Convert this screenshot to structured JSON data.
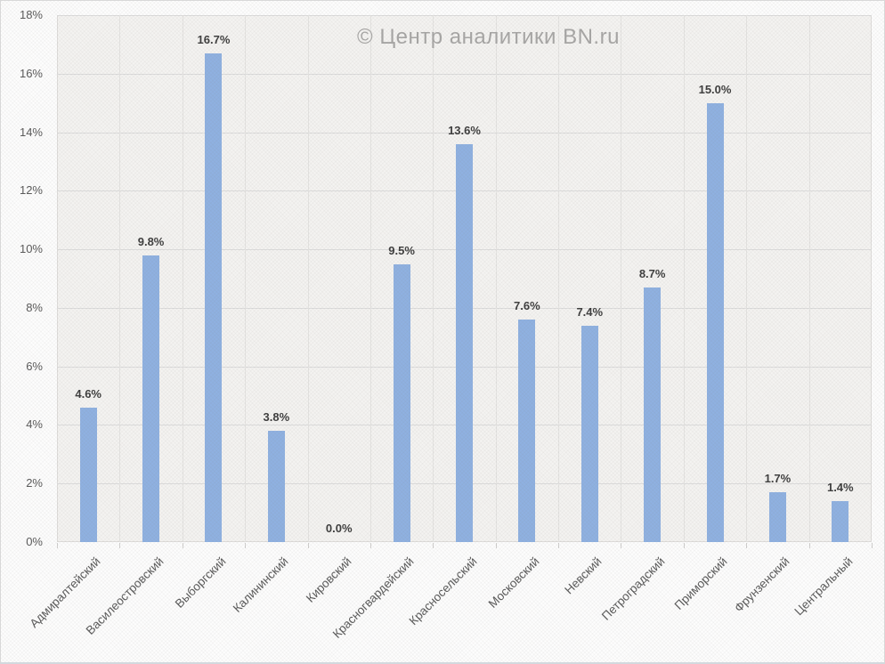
{
  "watermark": {
    "text": "© Центр аналитики BN.ru"
  },
  "colors": {
    "bar": "#8fb1e1",
    "grid": "#dcdcdc",
    "plot_bg": "#f4f3f1",
    "axis_text": "#595959",
    "value_text": "#3d3d3d",
    "watermark": "#a7a6a5"
  },
  "chart_data": {
    "type": "bar",
    "title": "",
    "xlabel": "",
    "ylabel": "",
    "legend": false,
    "grid": true,
    "ylim": [
      0,
      18
    ],
    "y_ticks": [
      "0%",
      "2%",
      "4%",
      "6%",
      "8%",
      "10%",
      "12%",
      "14%",
      "16%",
      "18%"
    ],
    "categories": [
      "Адмиралтейский",
      "Василеостровский",
      "Выборгский",
      "Калининский",
      "Кировский",
      "Красногвардейский",
      "Красносельский",
      "Московский",
      "Невский",
      "Петроградский",
      "Приморский",
      "Фрунзенский",
      "Центральный"
    ],
    "values": [
      4.6,
      9.8,
      16.7,
      3.8,
      0.0,
      9.5,
      13.6,
      7.6,
      7.4,
      8.7,
      15.0,
      1.7,
      1.4
    ],
    "value_labels": [
      "4.6%",
      "9.8%",
      "16.7%",
      "3.8%",
      "0.0%",
      "9.5%",
      "13.6%",
      "7.6%",
      "7.4%",
      "8.7%",
      "15.0%",
      "1.7%",
      "1.4%"
    ]
  }
}
